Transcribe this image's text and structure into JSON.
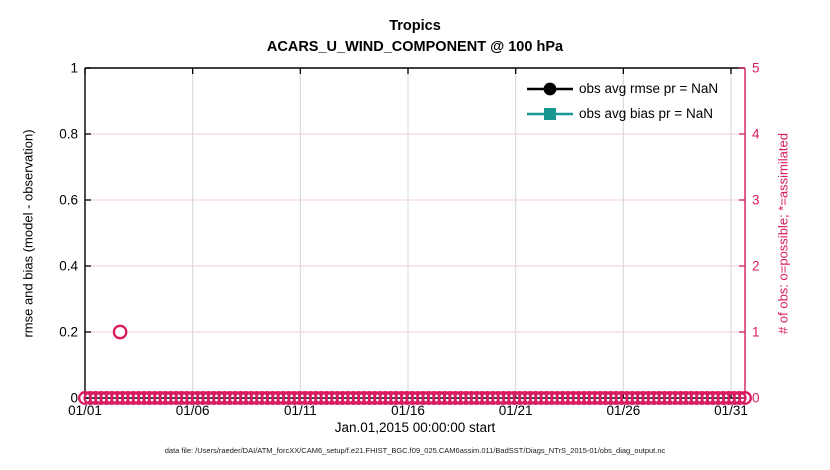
{
  "chart_data": {
    "type": "scatter",
    "title": "Tropics",
    "subtitle": "ACARS_U_WIND_COMPONENT @ 100 hPa",
    "xlabel": "Jan.01,2015 00:00:00 start",
    "ylabel_left": "rmse and bias (model - observation)",
    "ylabel_right": "# of obs: o=possible; *=assimilated",
    "footer": "data file: /Users/raeder/DAI/ATM_forcXX/CAM6_setup/f.e21.FHIST_BGC.f09_025.CAM6assim.011/BadSST/Diags_NTrS_2015-01/obs_diag_output.nc",
    "colors": {
      "obs_count": "#D81B60",
      "rmse": "#000000",
      "bias": "#179692",
      "grid_vertical": "#DBDBDB",
      "grid_horizontal": "rgba(216,27,96,0.18)",
      "axis_left": "#000000",
      "axis_right": "#D81B60"
    },
    "x_axis": {
      "tick_labels": [
        "01/01",
        "01/06",
        "01/11",
        "01/16",
        "01/21",
        "01/26",
        "01/31"
      ],
      "tick_days": [
        0,
        5,
        10,
        15,
        20,
        25,
        30
      ],
      "range_days": [
        0,
        30.65
      ],
      "grid": true
    },
    "y_axis_left": {
      "tick_labels": [
        "0",
        "0.2",
        "0.4",
        "0.6",
        "0.8",
        "1"
      ],
      "tick_values": [
        0,
        0.2,
        0.4,
        0.6,
        0.8,
        1
      ],
      "range": [
        0,
        1
      ],
      "grid": false
    },
    "y_axis_right": {
      "tick_labels": [
        "0",
        "1",
        "2",
        "3",
        "4",
        "5"
      ],
      "tick_values": [
        0,
        1,
        2,
        3,
        4,
        5
      ],
      "range": [
        0,
        5
      ],
      "grid": true
    },
    "legend": [
      {
        "label": "obs avg rmse pr = NaN",
        "marker": "circle",
        "color": "#000000"
      },
      {
        "label": "obs avg bias pr = NaN",
        "marker": "square",
        "color": "#179692"
      }
    ],
    "series": [
      {
        "name": "num-obs-possible",
        "axis": "right",
        "marker": "open-circle",
        "color": "#D81B60",
        "points": [
          {
            "day": 1.63,
            "value": 1
          }
        ],
        "zero_band": {
          "start_day": 0,
          "end_day": 30.65,
          "value": 0,
          "marker_count": 124
        }
      },
      {
        "name": "obs avg rmse",
        "color": "#000000",
        "values": "NaN"
      },
      {
        "name": "obs avg bias",
        "color": "#179692",
        "values": "NaN"
      }
    ]
  }
}
